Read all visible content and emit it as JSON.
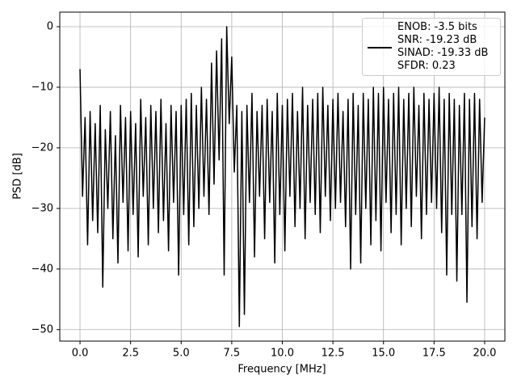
{
  "chart_data": {
    "type": "line",
    "xlabel": "Frequency [MHz]",
    "ylabel": "PSD [dB]",
    "grid": true,
    "legend": "upper right",
    "xlim": [
      -1.0,
      21.0
    ],
    "ylim": [
      -51.9,
      2.4
    ],
    "xticks": [
      {
        "value": 0,
        "label": "0.0"
      },
      2.5,
      {
        "value": 5,
        "label": "5.0"
      },
      7.5,
      {
        "value": 10,
        "label": "10.0"
      },
      12.5,
      {
        "value": 15,
        "label": "15.0"
      },
      17.5,
      {
        "value": 20,
        "label": "20.0"
      }
    ],
    "yticks": [
      {
        "value": -50,
        "label": "−50"
      },
      {
        "value": -40,
        "label": "−40"
      },
      {
        "value": -30,
        "label": "−30"
      },
      {
        "value": -20,
        "label": "−20"
      },
      {
        "value": -10,
        "label": "−10"
      },
      0
    ],
    "x": [
      0,
      0.125,
      0.25,
      0.375,
      0.5,
      0.625,
      0.75,
      0.875,
      1,
      1.125,
      1.25,
      1.375,
      1.5,
      1.625,
      1.75,
      1.875,
      2,
      2.125,
      2.25,
      2.375,
      2.5,
      2.625,
      2.75,
      2.875,
      3,
      3.125,
      3.25,
      3.375,
      3.5,
      3.625,
      3.75,
      3.875,
      4,
      4.125,
      4.25,
      4.375,
      4.5,
      4.625,
      4.75,
      4.875,
      5,
      5.125,
      5.25,
      5.375,
      5.5,
      5.625,
      5.75,
      5.875,
      6,
      6.125,
      6.25,
      6.375,
      6.5,
      6.625,
      6.75,
      6.875,
      7,
      7.125,
      7.25,
      7.375,
      7.5,
      7.625,
      7.75,
      7.875,
      8,
      8.125,
      8.25,
      8.375,
      8.5,
      8.625,
      8.75,
      8.875,
      9,
      9.125,
      9.25,
      9.375,
      9.5,
      9.625,
      9.75,
      9.875,
      10,
      10.125,
      10.25,
      10.375,
      10.5,
      10.625,
      10.75,
      10.875,
      11,
      11.125,
      11.25,
      11.375,
      11.5,
      11.625,
      11.75,
      11.875,
      12,
      12.125,
      12.25,
      12.375,
      12.5,
      12.625,
      12.75,
      12.875,
      13,
      13.125,
      13.25,
      13.375,
      13.5,
      13.625,
      13.75,
      13.875,
      14,
      14.125,
      14.25,
      14.375,
      14.5,
      14.625,
      14.75,
      14.875,
      15,
      15.125,
      15.25,
      15.375,
      15.5,
      15.625,
      15.75,
      15.875,
      16,
      16.125,
      16.25,
      16.375,
      16.5,
      16.625,
      16.75,
      16.875,
      17,
      17.125,
      17.25,
      17.375,
      17.5,
      17.625,
      17.75,
      17.875,
      18,
      18.125,
      18.25,
      18.375,
      18.5,
      18.625,
      18.75,
      18.875,
      19,
      19.125,
      19.25,
      19.375,
      19.5,
      19.625,
      19.75,
      19.875,
      20
    ],
    "series": [
      {
        "name": "ENOB: -3.5 bits\nSNR: -19.23 dB\nSINAD: -19.33 dB\nSFDR: 0.23",
        "color": "#000000",
        "values": [
          -7,
          -28,
          -15,
          -36,
          -14,
          -32,
          -16,
          -34,
          -13,
          -43,
          -17,
          -30,
          -14,
          -35,
          -18,
          -39,
          -13,
          -29,
          -15,
          -37,
          -14,
          -31,
          -16,
          -38,
          -12,
          -28,
          -15,
          -36,
          -13,
          -30,
          -14,
          -34,
          -12,
          -32,
          -16,
          -37,
          -13,
          -29,
          -14,
          -41,
          -13,
          -31,
          -12,
          -36,
          -11,
          -33,
          -13,
          -30,
          -10,
          -28,
          -12,
          -31,
          -6,
          -26,
          -4,
          -22,
          -2,
          -41,
          0,
          -16,
          -5,
          -24,
          -13,
          -49.5,
          -14,
          -47.5,
          -13,
          -29,
          -11,
          -38,
          -14,
          -28,
          -13,
          -35,
          -12,
          -29,
          -14,
          -39,
          -11,
          -31,
          -13,
          -37,
          -12,
          -28,
          -11,
          -33,
          -14,
          -30,
          -10,
          -35,
          -13,
          -29,
          -12,
          -31,
          -11,
          -34,
          -10,
          -28,
          -13,
          -32,
          -12,
          -30,
          -11,
          -29,
          -14,
          -33,
          -12,
          -40,
          -11,
          -31,
          -13,
          -39,
          -11,
          -30,
          -12,
          -36,
          -10,
          -32,
          -11,
          -37,
          -10,
          -29,
          -12,
          -34,
          -11,
          -31,
          -10,
          -36,
          -12,
          -30,
          -11,
          -33,
          -10,
          -28,
          -13,
          -35,
          -11,
          -31,
          -12,
          -29,
          -11,
          -30,
          -10,
          -34,
          -12,
          -41,
          -11,
          -31,
          -12,
          -42,
          -13,
          -31,
          -11,
          -45.5,
          -12,
          -33,
          -11,
          -35,
          -12,
          -29,
          -15
        ]
      }
    ]
  }
}
